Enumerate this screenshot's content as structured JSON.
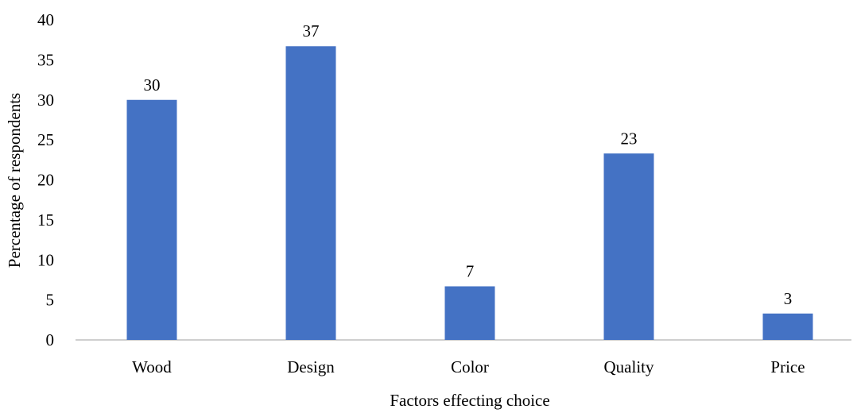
{
  "chart_data": {
    "type": "bar",
    "title": "",
    "xlabel": "Factors effecting choice",
    "ylabel": "Percentage of respondents",
    "categories": [
      "Wood",
      "Design",
      "Color",
      "Quality",
      "Price"
    ],
    "values": [
      30,
      37,
      7,
      23,
      3
    ],
    "plotted_values": [
      30,
      36.7,
      6.7,
      23.3,
      3.3
    ],
    "data_labels": [
      "30",
      "37",
      "7",
      "23",
      "3"
    ],
    "ylim": [
      0,
      40
    ],
    "yticks": [
      0,
      5,
      10,
      15,
      20,
      25,
      30,
      35,
      40
    ],
    "grid": false,
    "legend": "none",
    "bar_color": "#4472C4",
    "axis_color": "#BFBFBF"
  }
}
